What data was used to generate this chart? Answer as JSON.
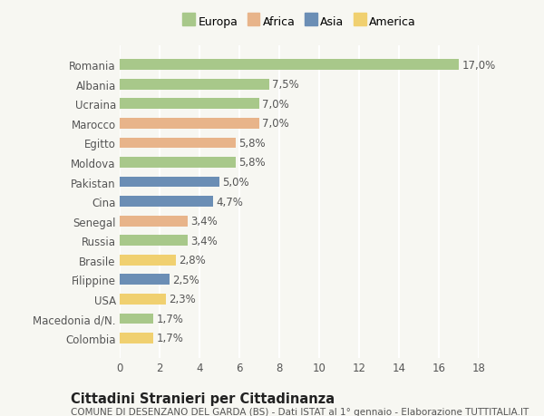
{
  "categories": [
    "Romania",
    "Albania",
    "Ucraina",
    "Marocco",
    "Egitto",
    "Moldova",
    "Pakistan",
    "Cina",
    "Senegal",
    "Russia",
    "Brasile",
    "Filippine",
    "USA",
    "Macedonia d/N.",
    "Colombia"
  ],
  "values": [
    17.0,
    7.5,
    7.0,
    7.0,
    5.8,
    5.8,
    5.0,
    4.7,
    3.4,
    3.4,
    2.8,
    2.5,
    2.3,
    1.7,
    1.7
  ],
  "labels": [
    "17,0%",
    "7,5%",
    "7,0%",
    "7,0%",
    "5,8%",
    "5,8%",
    "5,0%",
    "4,7%",
    "3,4%",
    "3,4%",
    "2,8%",
    "2,5%",
    "2,3%",
    "1,7%",
    "1,7%"
  ],
  "continents": [
    "Europa",
    "Europa",
    "Europa",
    "Africa",
    "Africa",
    "Europa",
    "Asia",
    "Asia",
    "Africa",
    "Europa",
    "America",
    "Asia",
    "America",
    "Europa",
    "America"
  ],
  "colors": {
    "Europa": "#a8c88a",
    "Africa": "#e8b48a",
    "Asia": "#6b8eb5",
    "America": "#f0d070"
  },
  "legend_order": [
    "Europa",
    "Africa",
    "Asia",
    "America"
  ],
  "title": "Cittadini Stranieri per Cittadinanza",
  "subtitle": "COMUNE DI DESENZANO DEL GARDA (BS) - Dati ISTAT al 1° gennaio - Elaborazione TUTTITALIA.IT",
  "xlim": [
    0,
    18
  ],
  "xticks": [
    0,
    2,
    4,
    6,
    8,
    10,
    12,
    14,
    16,
    18
  ],
  "background_color": "#f7f7f2",
  "grid_color": "#ffffff",
  "bar_height": 0.55,
  "label_fontsize": 8.5,
  "tick_fontsize": 8.5,
  "title_fontsize": 10.5,
  "subtitle_fontsize": 7.5
}
